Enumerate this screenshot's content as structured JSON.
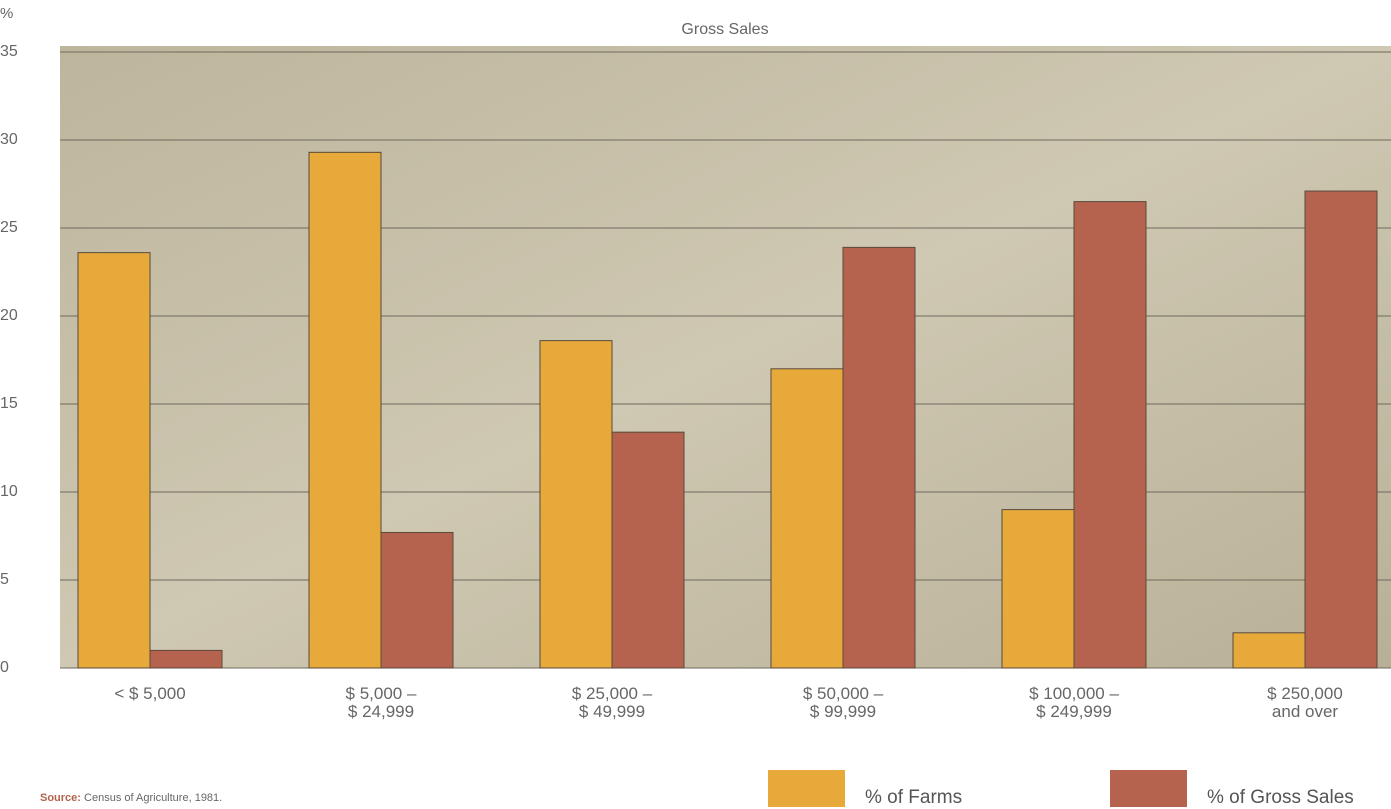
{
  "chart_data": {
    "type": "bar",
    "title": "Gross Sales",
    "y_label": "%",
    "categories": [
      "< $ 5,000",
      "$ 5,000 –\n$ 24,999",
      "$ 25,000 –\n$ 49,999",
      "$ 50,000 –\n$ 99,999",
      "$ 100,000 –\n$ 249,999",
      "$ 250,000\nand over"
    ],
    "series": [
      {
        "name": "% of Farms",
        "color": "#e6a93a",
        "values": [
          23.6,
          29.3,
          18.6,
          17.0,
          9.0,
          2.0
        ]
      },
      {
        "name": "% of Gross Sales",
        "color": "#b5624e",
        "values": [
          1.0,
          7.7,
          13.4,
          23.9,
          26.5,
          27.1
        ]
      }
    ],
    "ylim": [
      0,
      35
    ],
    "yticks": [
      0,
      5,
      10,
      15,
      20,
      25,
      30,
      35
    ],
    "grid": true,
    "source_label": "Source:",
    "source": "Census of Agriculture, 1981."
  }
}
